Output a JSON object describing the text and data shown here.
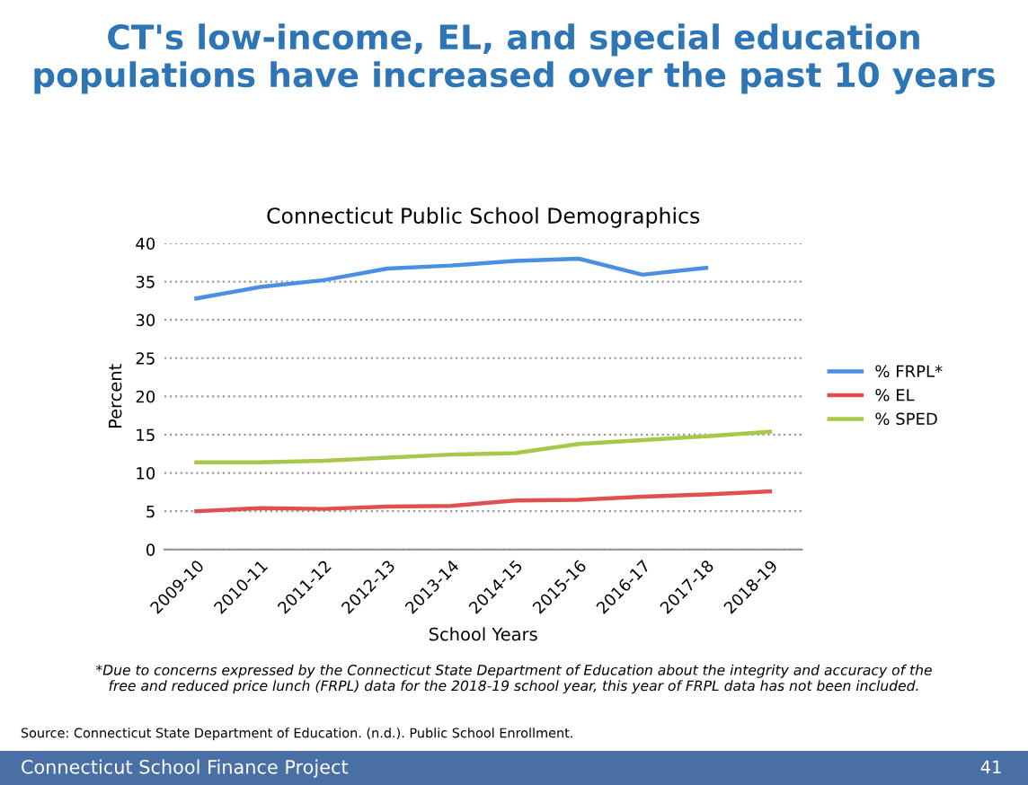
{
  "chart_data": {
    "type": "line",
    "title": "CT's low-income, EL, and special education\npopulations have increased over the past 10 years",
    "subtitle": "Connecticut Public School Demographics",
    "xlabel": "School Years",
    "ylabel": "Percent",
    "categories": [
      "2009-10",
      "2010-11",
      "2011-12",
      "2012-13",
      "2013-14",
      "2014-15",
      "2015-16",
      "2016-17",
      "2017-18",
      "2018-19"
    ],
    "series": [
      {
        "name": "% FRPL*",
        "color": "#4a90e2",
        "values": [
          32.8,
          34.3,
          35.2,
          36.7,
          37.1,
          37.7,
          38.0,
          35.9,
          36.8,
          null
        ]
      },
      {
        "name": "% EL",
        "color": "#e05050",
        "values": [
          5.0,
          5.4,
          5.3,
          5.6,
          5.7,
          6.4,
          6.5,
          6.9,
          7.2,
          7.6
        ]
      },
      {
        "name": "% SPED",
        "color": "#a8c84a",
        "values": [
          11.4,
          11.4,
          11.6,
          12.0,
          12.4,
          12.6,
          13.8,
          14.3,
          14.8,
          15.4
        ]
      }
    ],
    "ylim": [
      0,
      40
    ],
    "yticks": [
      0,
      5,
      10,
      15,
      20,
      25,
      30,
      35,
      40
    ],
    "grid": "y",
    "legend": "right",
    "marker": "none",
    "line_style": "solid",
    "annotations": [
      "*Due to concerns expressed by the Connecticut State Department of Education about the integrity and accuracy of the\nfree and reduced price lunch (FRPL) data for the 2018-19 school year, this year of FRPL data has not been included.",
      "Source: Connecticut State Department of Education. (n.d.). Public School Enrollment.",
      "Connecticut School Finance Project",
      "41"
    ]
  }
}
